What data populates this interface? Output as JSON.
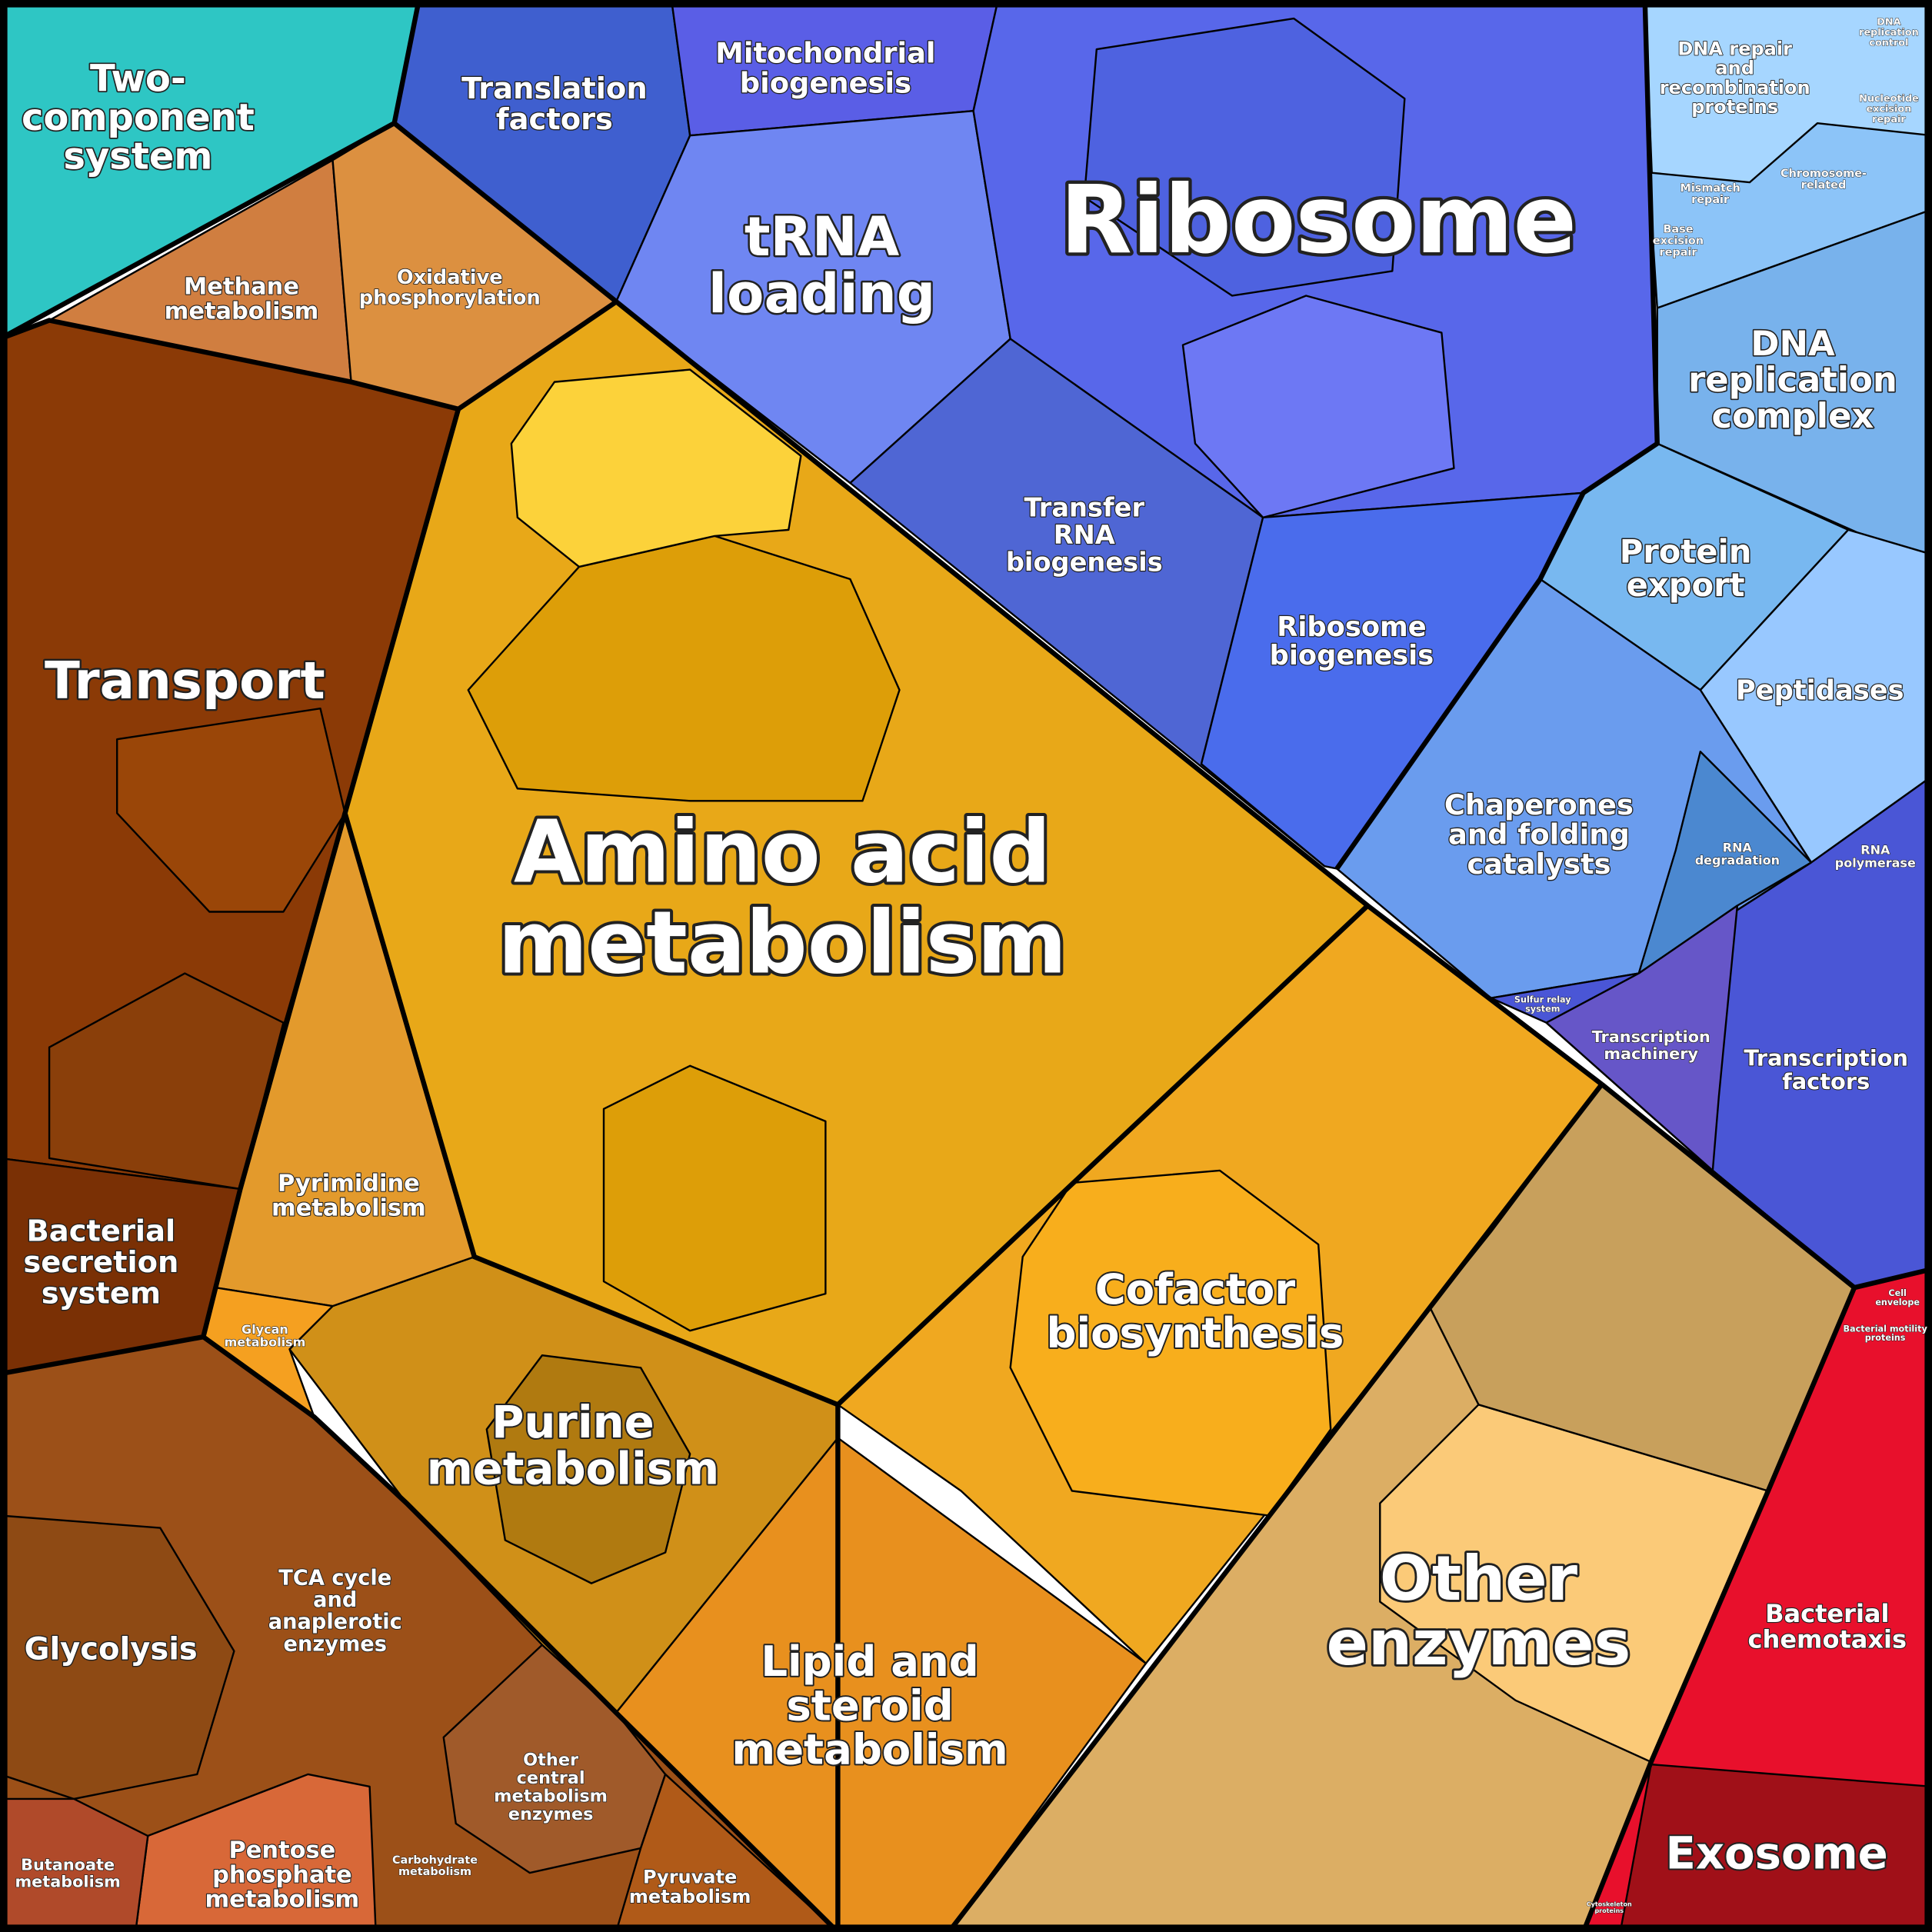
{
  "regions": {
    "two_component": [
      "Two-",
      "component",
      "system"
    ],
    "translation_factors": [
      "Translation",
      "factors"
    ],
    "mitochondrial_biogenesis": [
      "Mitochondrial",
      "biogenesis"
    ],
    "trna_loading": [
      "tRNA",
      "loading"
    ],
    "ribosome": [
      "Ribosome"
    ],
    "dna_repair": [
      "DNA repair",
      "and",
      "recombination",
      "proteins"
    ],
    "dna_replication_control": [
      "DNA",
      "replication",
      "control"
    ],
    "nucleotide_excision_repair": [
      "Nucleotide",
      "excision",
      "repair"
    ],
    "mismatch_repair": [
      "Mismatch",
      "repair"
    ],
    "chromosome_related": [
      "Chromosome-",
      "related"
    ],
    "base_excision_repair": [
      "Base",
      "excision",
      "repair"
    ],
    "dna_replication_complex": [
      "DNA",
      "replication",
      "complex"
    ],
    "transfer_rna_biogenesis": [
      "Transfer",
      "RNA",
      "biogenesis"
    ],
    "ribosome_biogenesis": [
      "Ribosome",
      "biogenesis"
    ],
    "protein_export": [
      "Protein",
      "export"
    ],
    "peptidases": [
      "Peptidases"
    ],
    "chaperones": [
      "Chaperones",
      "and folding",
      "catalysts"
    ],
    "rna_degradation": [
      "RNA",
      "degradation"
    ],
    "rna_polymerase": [
      "RNA",
      "polymerase"
    ],
    "sulfur_relay": [
      "Sulfur relay",
      "system"
    ],
    "transcription_machinery": [
      "Transcription",
      "machinery"
    ],
    "transcription_factors": [
      "Transcription",
      "factors"
    ],
    "cell_envelope": [
      "Cell",
      "envelope"
    ],
    "bacterial_motility": [
      "Bacterial motility",
      "proteins"
    ],
    "bacterial_chemotaxis": [
      "Bacterial",
      "chemotaxis"
    ],
    "exosome": [
      "Exosome"
    ],
    "cytoskeleton": [
      "Cytoskeleton",
      "proteins"
    ],
    "other_enzymes": [
      "Other",
      "enzymes"
    ],
    "amino_acid": [
      "Amino acid",
      "metabolism"
    ],
    "cofactor": [
      "Cofactor",
      "biosynthesis"
    ],
    "purine": [
      "Purine",
      "metabolism"
    ],
    "lipid": [
      "Lipid and",
      "steroid",
      "metabolism"
    ],
    "pyrimidine": [
      "Pyrimidine",
      "metabolism"
    ],
    "glycan": [
      "Glycan",
      "metabolism"
    ],
    "methane": [
      "Methane",
      "metabolism"
    ],
    "oxidative": [
      "Oxidative",
      "phosphorylation"
    ],
    "transport": [
      "Transport"
    ],
    "bacterial_secretion": [
      "Bacterial",
      "secretion",
      "system"
    ],
    "glycolysis": [
      "Glycolysis"
    ],
    "tca": [
      "TCA cycle",
      "and",
      "anaplerotic",
      "enzymes"
    ],
    "other_central": [
      "Other",
      "central",
      "metabolism",
      "enzymes"
    ],
    "butanoate": [
      "Butanoate",
      "metabolism"
    ],
    "pentose": [
      "Pentose",
      "phosphate",
      "metabolism"
    ],
    "carbohydrate": [
      "Carbohydrate",
      "metabolism"
    ],
    "pyruvate": [
      "Pyruvate",
      "metabolism"
    ]
  }
}
